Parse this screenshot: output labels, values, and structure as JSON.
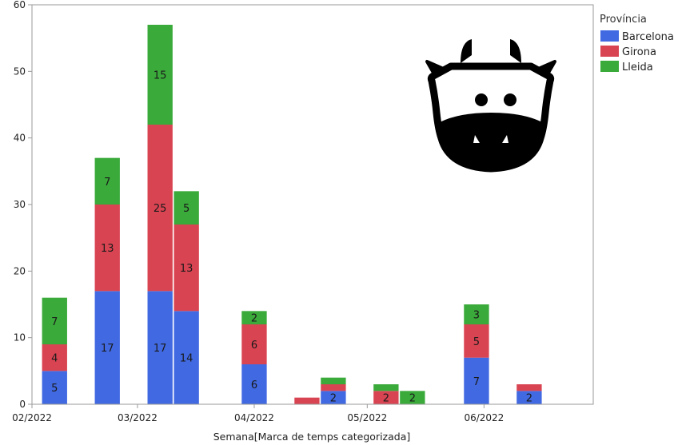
{
  "chart_data": {
    "type": "bar",
    "stacked": true,
    "xlabel": "Semana[Marca de temps categorizada]",
    "ylabel": "",
    "ylim": [
      0,
      60
    ],
    "yticks": [
      0,
      10,
      20,
      30,
      40,
      50,
      60
    ],
    "x_start": "2022-02-01",
    "x_end": "2022-06-30",
    "xticks": [
      {
        "label": "02/2022",
        "date": "2022-02-01"
      },
      {
        "label": "03/2022",
        "date": "2022-03-01"
      },
      {
        "label": "04/2022",
        "date": "2022-04-01"
      },
      {
        "label": "05/2022",
        "date": "2022-05-01"
      },
      {
        "label": "06/2022",
        "date": "2022-06-01"
      }
    ],
    "weeks": [
      "2022-02-07",
      "2022-02-21",
      "2022-03-07",
      "2022-03-14",
      "2022-04-01",
      "2022-04-15",
      "2022-04-22",
      "2022-05-06",
      "2022-05-13",
      "2022-05-30",
      "2022-06-13"
    ],
    "legend": {
      "title": "Província",
      "position": "right"
    },
    "series": [
      {
        "name": "Barcelona",
        "color": "#4169E1",
        "values": [
          5,
          17,
          17,
          14,
          6,
          0,
          2,
          0,
          0,
          7,
          2
        ]
      },
      {
        "name": "Girona",
        "color": "#D94452",
        "values": [
          4,
          13,
          25,
          13,
          6,
          1,
          1,
          2,
          0,
          5,
          1
        ]
      },
      {
        "name": "Lleida",
        "color": "#3AAA3A",
        "values": [
          7,
          7,
          15,
          5,
          2,
          0,
          1,
          1,
          2,
          3,
          0
        ]
      }
    ]
  },
  "decoration": {
    "icon": "cow-face-icon"
  }
}
